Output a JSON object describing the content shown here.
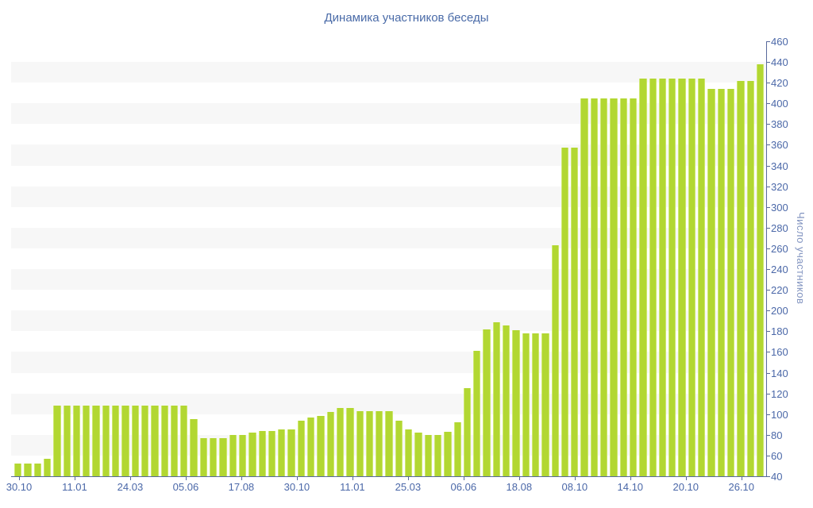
{
  "chart_data": {
    "type": "bar",
    "title": "Динамика участников беседы",
    "xlabel": "",
    "ylabel": "Число участников",
    "ylim": [
      40,
      460
    ],
    "baseline": 40,
    "y_tick_step": 20,
    "y_ticks": [
      40,
      60,
      80,
      100,
      120,
      140,
      160,
      180,
      200,
      220,
      240,
      260,
      280,
      300,
      320,
      340,
      360,
      380,
      400,
      420,
      440,
      460
    ],
    "x_labels": [
      "30.10",
      "11.01",
      "24.03",
      "05.06",
      "17.08",
      "30.10",
      "11.01",
      "25.03",
      "06.06",
      "18.08",
      "08.10",
      "14.10",
      "20.10",
      "26.10"
    ],
    "values": [
      52,
      52,
      52,
      57,
      108,
      108,
      108,
      108,
      108,
      108,
      108,
      108,
      108,
      108,
      108,
      108,
      108,
      108,
      95,
      77,
      77,
      77,
      80,
      80,
      82,
      84,
      84,
      85,
      85,
      94,
      97,
      98,
      102,
      106,
      106,
      103,
      103,
      103,
      103,
      94,
      85,
      82,
      80,
      80,
      83,
      92,
      125,
      161,
      182,
      189,
      186,
      181,
      178,
      178,
      178,
      263,
      357,
      357,
      405,
      405,
      405,
      405,
      405,
      405,
      424,
      424,
      424,
      424,
      424,
      424,
      424,
      414,
      414,
      414,
      422,
      422,
      438
    ],
    "legend": "none",
    "grid": "alternating horizontal bands of 20 units",
    "colors": {
      "bar": "#b2d732",
      "bar_edge": "#cde76f",
      "band_gray": "#f7f7f7",
      "band_white": "#ffffff",
      "axis": "#58699c",
      "tick_label": "#4b68a8",
      "title": "#4a6ba8",
      "y_axis_title": "#8294c0",
      "background": "#ffffff"
    }
  }
}
